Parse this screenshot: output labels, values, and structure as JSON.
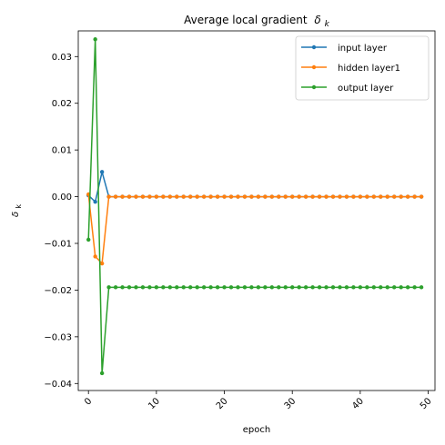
{
  "chart_data": {
    "type": "line",
    "title": "Average local gradient",
    "title_symbol": "δ",
    "title_subscript": "k",
    "xlabel": "epoch",
    "ylabel_symbol": "δ",
    "ylabel_subscript": "k",
    "xlim": [
      -1.5,
      51
    ],
    "ylim": [
      -0.0415,
      0.0355
    ],
    "x_ticks": [
      0,
      10,
      20,
      30,
      40,
      50
    ],
    "x_tick_labels": [
      "0",
      "10",
      "20",
      "30",
      "40",
      "50"
    ],
    "x_tick_rotation_deg": 45,
    "y_ticks": [
      0.03,
      0.02,
      0.01,
      0.0,
      -0.01,
      -0.02,
      -0.03,
      -0.04
    ],
    "y_tick_labels": [
      "0.03",
      "0.02",
      "0.01",
      "0.00",
      "−0.01",
      "−0.02",
      "−0.03",
      "−0.04"
    ],
    "grid": false,
    "legend_position": "top-right",
    "x": [
      0,
      1,
      2,
      3,
      4,
      5,
      6,
      7,
      8,
      9,
      10,
      11,
      12,
      13,
      14,
      15,
      16,
      17,
      18,
      19,
      20,
      21,
      22,
      23,
      24,
      25,
      26,
      27,
      28,
      29,
      30,
      31,
      32,
      33,
      34,
      35,
      36,
      37,
      38,
      39,
      40,
      41,
      42,
      43,
      44,
      45,
      46,
      47,
      48,
      49
    ],
    "series": [
      {
        "name": "input layer",
        "color": "#1f77b4",
        "values": [
          0.0003,
          -0.0011,
          0.0053,
          0.0,
          0.0,
          0.0,
          0.0,
          0.0,
          0.0,
          0.0,
          0.0,
          0.0,
          0.0,
          0.0,
          0.0,
          0.0,
          0.0,
          0.0,
          0.0,
          0.0,
          0.0,
          0.0,
          0.0,
          0.0,
          0.0,
          0.0,
          0.0,
          0.0,
          0.0,
          0.0,
          0.0,
          0.0,
          0.0,
          0.0,
          0.0,
          0.0,
          0.0,
          0.0,
          0.0,
          0.0,
          0.0,
          0.0,
          0.0,
          0.0,
          0.0,
          0.0,
          0.0,
          0.0,
          0.0,
          0.0
        ]
      },
      {
        "name": "hidden layer1",
        "color": "#ff7f0e",
        "values": [
          0.0005,
          -0.0128,
          -0.0143,
          0.0,
          0.0,
          0.0,
          0.0,
          0.0,
          0.0,
          0.0,
          0.0,
          0.0,
          0.0,
          0.0,
          0.0,
          0.0,
          0.0,
          0.0,
          0.0,
          0.0,
          0.0,
          0.0,
          0.0,
          0.0,
          0.0,
          0.0,
          0.0,
          0.0,
          0.0,
          0.0,
          0.0,
          0.0,
          0.0,
          0.0,
          0.0,
          0.0,
          0.0,
          0.0,
          0.0,
          0.0,
          0.0,
          0.0,
          0.0,
          0.0,
          0.0,
          0.0,
          0.0,
          0.0,
          0.0,
          0.0
        ]
      },
      {
        "name": "output layer",
        "color": "#2ca02c",
        "values": [
          -0.0092,
          0.0337,
          -0.0378,
          -0.0194,
          -0.0194,
          -0.0194,
          -0.0194,
          -0.0194,
          -0.0194,
          -0.0194,
          -0.0194,
          -0.0194,
          -0.0194,
          -0.0194,
          -0.0194,
          -0.0194,
          -0.0194,
          -0.0194,
          -0.0194,
          -0.0194,
          -0.0194,
          -0.0194,
          -0.0194,
          -0.0194,
          -0.0194,
          -0.0194,
          -0.0194,
          -0.0194,
          -0.0194,
          -0.0194,
          -0.0194,
          -0.0194,
          -0.0194,
          -0.0194,
          -0.0194,
          -0.0194,
          -0.0194,
          -0.0194,
          -0.0194,
          -0.0194,
          -0.0194,
          -0.0194,
          -0.0194,
          -0.0194,
          -0.0194,
          -0.0194,
          -0.0194,
          -0.0194,
          -0.0194,
          -0.0194
        ]
      }
    ]
  }
}
